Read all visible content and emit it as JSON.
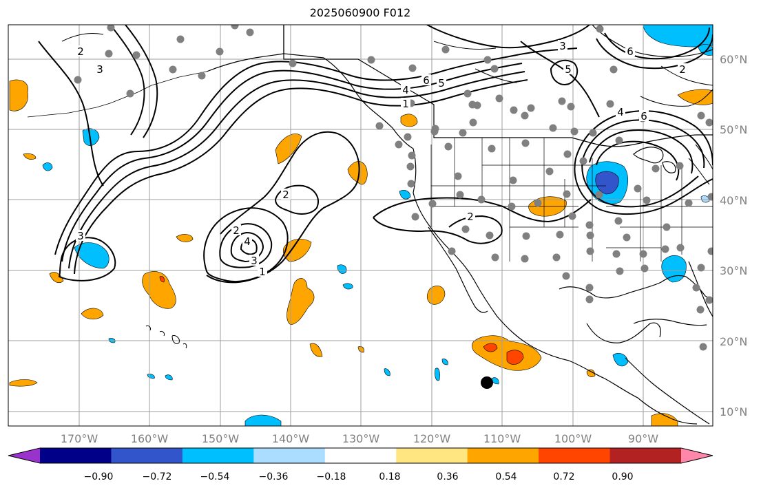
{
  "title": "2025060900 F012",
  "map": {
    "lat_labels": [
      "60°N",
      "50°N",
      "40°N",
      "30°N",
      "20°N",
      "10°N"
    ],
    "lon_labels": [
      "170°W",
      "160°W",
      "150°W",
      "140°W",
      "130°W",
      "120°W",
      "110°W",
      "100°W",
      "90°W"
    ],
    "contour_labels": [
      "1",
      "2",
      "3",
      "4",
      "5",
      "6"
    ],
    "colors": {
      "gridline": "#9e9e9e",
      "coast": "#000000",
      "contour": "#000000",
      "station_dot": "#808080",
      "marker": "#000000"
    }
  },
  "colorbar": {
    "tick_labels": [
      "−0.90",
      "−0.72",
      "−0.54",
      "−0.36",
      "−0.18",
      "0.18",
      "0.36",
      "0.54",
      "0.72",
      "0.90"
    ],
    "colors": [
      "#9933cc",
      "#000088",
      "#3355cc",
      "#00bfff",
      "#aaddff",
      "#ffffff",
      "#ffe680",
      "#ffa500",
      "#ff4500",
      "#b22222",
      "#ff88aa"
    ]
  }
}
